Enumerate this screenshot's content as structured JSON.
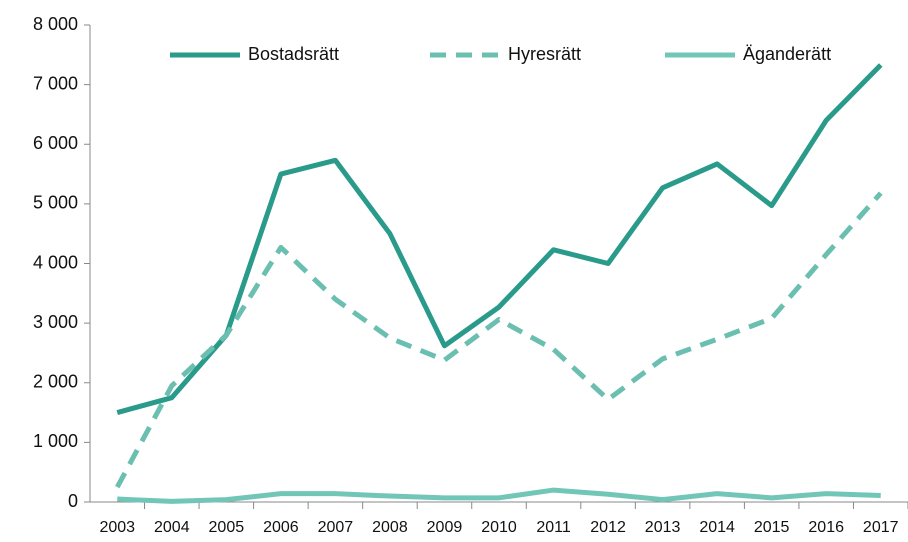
{
  "chart_data": {
    "type": "line",
    "categories": [
      "2003",
      "2004",
      "2005",
      "2006",
      "2007",
      "2008",
      "2009",
      "2010",
      "2011",
      "2012",
      "2013",
      "2014",
      "2015",
      "2016",
      "2017"
    ],
    "series": [
      {
        "name": "Bostadsrätt",
        "color": "#2a9a8a",
        "dashed": false,
        "values": [
          1500,
          1750,
          2800,
          5500,
          5730,
          4500,
          2620,
          3270,
          4230,
          4000,
          5270,
          5670,
          4970,
          6400,
          7330
        ]
      },
      {
        "name": "Hyresrätt",
        "color": "#6bbfb0",
        "dashed": true,
        "values": [
          250,
          1950,
          2800,
          4270,
          3400,
          2750,
          2380,
          3060,
          2560,
          1720,
          2400,
          2730,
          3080,
          4150,
          5180
        ]
      },
      {
        "name": "Äganderätt",
        "color": "#72c6b8",
        "dashed": false,
        "values": [
          50,
          10,
          40,
          140,
          140,
          100,
          70,
          70,
          200,
          130,
          40,
          140,
          70,
          140,
          110
        ]
      }
    ],
    "ylim": [
      0,
      8000
    ],
    "yticks": [
      0,
      {
        "value": 1000,
        "label": "1 000"
      },
      {
        "value": 2000,
        "label": "2 000"
      },
      {
        "value": 3000,
        "label": "3 000"
      },
      {
        "value": 4000,
        "label": "4 000"
      },
      {
        "value": 5000,
        "label": "5 000"
      },
      {
        "value": 6000,
        "label": "6 000"
      },
      {
        "value": 7000,
        "label": "7 000"
      },
      {
        "value": 8000,
        "label": "8 000"
      }
    ],
    "grid": false,
    "legend": "top"
  }
}
